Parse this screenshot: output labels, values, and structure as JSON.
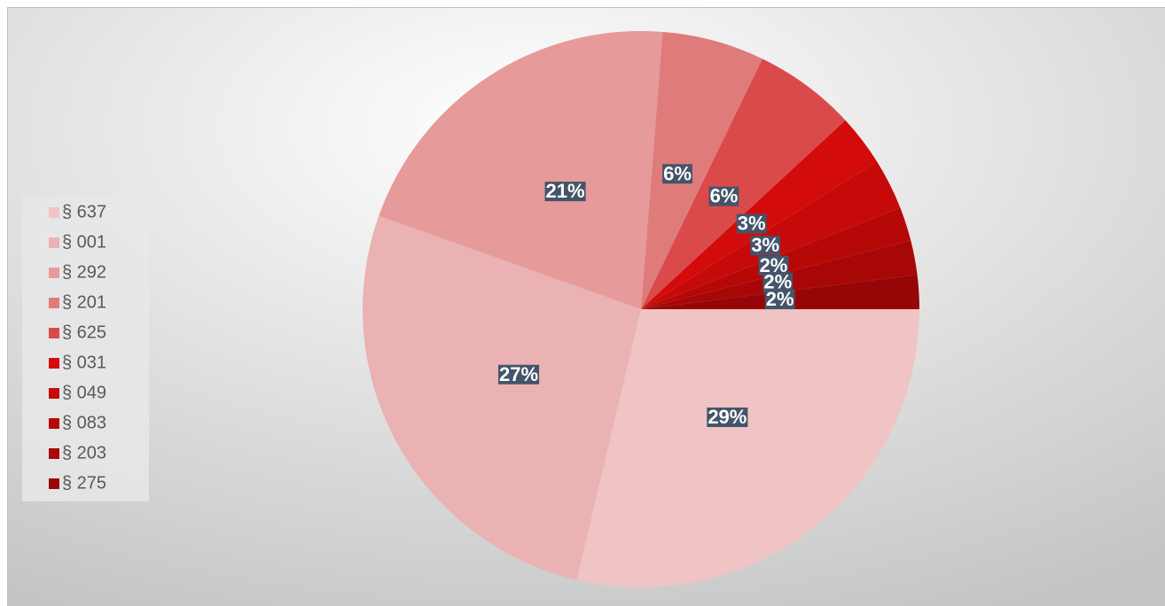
{
  "chart_data": {
    "type": "pie",
    "categories": [
      "§ 637",
      "§ 001",
      "§ 292",
      "§ 201",
      "§ 625",
      "§ 031",
      "§ 049",
      "§ 083",
      "§ 203",
      "§ 275"
    ],
    "values": [
      29,
      27,
      21,
      6,
      6,
      3,
      3,
      2,
      2,
      2
    ],
    "value_labels": [
      "29%",
      "27%",
      "21%",
      "6%",
      "6%",
      "3%",
      "3%",
      "2%",
      "2%",
      "2%"
    ],
    "colors": [
      "#f0c4c4",
      "#eab2b2",
      "#e69a9a",
      "#e07b7b",
      "#db4a4a",
      "#d40b0b",
      "#c60a0a",
      "#b70808",
      "#a70707",
      "#970606"
    ],
    "legend": "left"
  }
}
